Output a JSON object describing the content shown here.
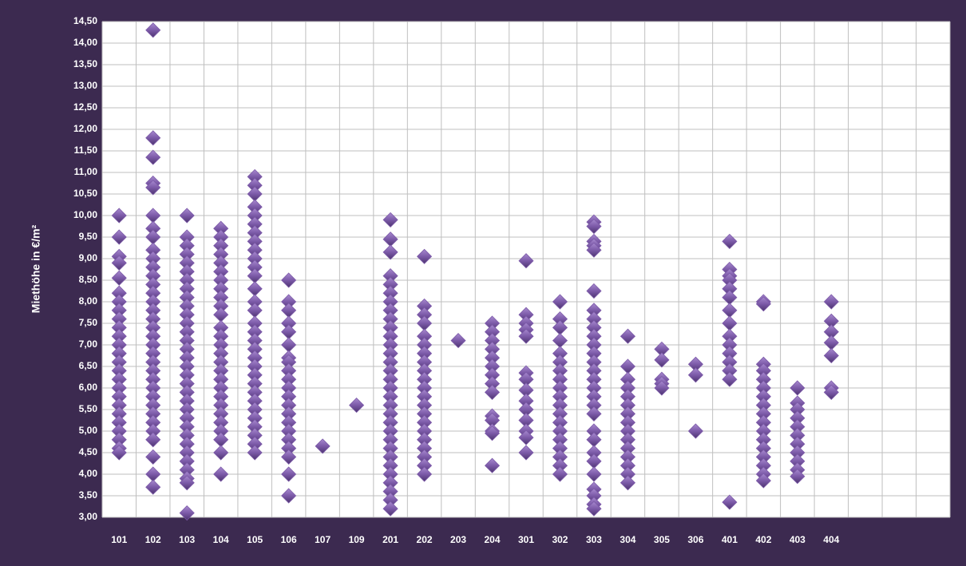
{
  "chart_data": {
    "type": "strip",
    "y_label": "Miethöhe in €/m²",
    "categories": [
      "101",
      "102",
      "103",
      "104",
      "105",
      "106",
      "107",
      "109",
      "201",
      "202",
      "203",
      "204",
      "301",
      "302",
      "303",
      "304",
      "305",
      "306",
      "401",
      "402",
      "403",
      "404",
      null,
      null,
      null
    ],
    "values": [
      [
        10,
        9.5,
        9.05,
        8.9,
        8.55,
        8.2,
        8,
        7.8,
        7.6,
        7.4,
        7.2,
        7,
        6.8,
        6.6,
        6.4,
        6.2,
        6,
        5.8,
        5.6,
        5.4,
        5.2,
        5,
        4.8,
        4.6,
        4.5
      ],
      [
        14.3,
        11.8,
        11.35,
        10.75,
        10.65,
        10,
        9.7,
        9.5,
        9.2,
        9,
        8.8,
        8.6,
        8.4,
        8.2,
        8,
        7.8,
        7.6,
        7.4,
        7.2,
        7,
        6.8,
        6.6,
        6.4,
        6.2,
        6,
        5.8,
        5.6,
        5.4,
        5.2,
        5,
        4.8,
        4.4,
        4,
        3.7
      ],
      [
        10,
        9.5,
        9.3,
        9.1,
        8.9,
        8.7,
        8.5,
        8.3,
        8.1,
        7.9,
        7.7,
        7.5,
        7.3,
        7.1,
        6.9,
        6.7,
        6.5,
        6.3,
        6.1,
        5.9,
        5.7,
        5.5,
        5.3,
        5.1,
        4.9,
        4.7,
        4.5,
        4.3,
        4.1,
        3.9,
        3.8,
        3.1
      ],
      [
        9.7,
        9.5,
        9.3,
        9.1,
        8.9,
        8.7,
        8.5,
        8.3,
        8.1,
        7.9,
        7.7,
        7.4,
        7.2,
        7,
        6.8,
        6.6,
        6.4,
        6.2,
        6,
        5.8,
        5.6,
        5.4,
        5.2,
        5,
        4.8,
        4.5,
        4
      ],
      [
        10.9,
        10.7,
        10.5,
        10.2,
        10,
        9.8,
        9.6,
        9.4,
        9.2,
        9,
        8.8,
        8.6,
        8.3,
        8,
        7.8,
        7.5,
        7.3,
        7.1,
        6.9,
        6.7,
        6.5,
        6.3,
        6.1,
        5.9,
        5.7,
        5.5,
        5.3,
        5.1,
        4.9,
        4.7,
        4.5
      ],
      [
        8.5,
        8,
        7.8,
        7.5,
        7.3,
        7,
        6.7,
        6.6,
        6.4,
        6.2,
        6,
        5.8,
        5.6,
        5.4,
        5.2,
        5,
        4.8,
        4.6,
        4.4,
        4,
        3.5
      ],
      [
        4.65
      ],
      [
        5.6
      ],
      [
        9.9,
        9.45,
        9.15,
        8.6,
        8.4,
        8.2,
        8,
        7.8,
        7.6,
        7.4,
        7.2,
        7,
        6.8,
        6.6,
        6.4,
        6.2,
        6,
        5.8,
        5.6,
        5.4,
        5.2,
        5,
        4.8,
        4.6,
        4.4,
        4.2,
        4,
        3.8,
        3.6,
        3.4,
        3.2
      ],
      [
        9.05,
        7.9,
        7.7,
        7.5,
        7.2,
        7,
        6.8,
        6.6,
        6.4,
        6.2,
        6,
        5.8,
        5.6,
        5.4,
        5.2,
        5,
        4.8,
        4.6,
        4.4,
        4.2,
        4
      ],
      [
        7.1
      ],
      [
        7.5,
        7.3,
        7.1,
        6.9,
        6.7,
        6.5,
        6.3,
        6.1,
        5.9,
        5.35,
        5.25,
        5,
        4.95,
        4.2
      ],
      [
        8.95,
        7.7,
        7.5,
        7.35,
        7.2,
        6.35,
        6.2,
        5.95,
        5.7,
        5.5,
        5.25,
        5,
        4.85,
        4.5
      ],
      [
        8,
        7.6,
        7.4,
        7.1,
        6.8,
        6.6,
        6.4,
        6.2,
        6,
        5.8,
        5.6,
        5.4,
        5.2,
        5,
        4.8,
        4.6,
        4.4,
        4.2,
        4
      ],
      [
        9.85,
        9.75,
        9.4,
        9.3,
        9.2,
        8.25,
        7.8,
        7.6,
        7.4,
        7.2,
        7,
        6.8,
        6.6,
        6.4,
        6.2,
        6,
        5.8,
        5.6,
        5.4,
        5,
        4.8,
        4.5,
        4.3,
        4,
        3.65,
        3.5,
        3.3,
        3.2
      ],
      [
        7.2,
        6.5,
        6.2,
        6,
        5.8,
        5.6,
        5.4,
        5.2,
        5,
        4.8,
        4.6,
        4.4,
        4.2,
        4,
        3.8
      ],
      [
        6.9,
        6.65,
        6.2,
        6.1,
        6
      ],
      [
        6.55,
        6.3,
        5
      ],
      [
        9.4,
        8.75,
        8.6,
        8.5,
        8.3,
        8.1,
        7.8,
        7.5,
        7.2,
        7,
        6.8,
        6.6,
        6.4,
        6.2,
        3.35
      ],
      [
        8,
        7.95,
        6.55,
        6.4,
        6.2,
        6,
        5.8,
        5.6,
        5.4,
        5.2,
        5,
        4.8,
        4.6,
        4.4,
        4.2,
        4,
        3.85
      ],
      [
        6,
        5.65,
        5.5,
        5.3,
        5.1,
        4.9,
        4.7,
        4.5,
        4.3,
        4.1,
        3.95
      ],
      [
        8,
        7.55,
        7.3,
        7.05,
        6.75,
        6,
        5.9
      ],
      [],
      [],
      []
    ],
    "color": "#7c5aa8",
    "ylim": [
      3,
      14.5
    ],
    "yticks": [
      {
        "value": 3,
        "label": "3,00"
      },
      {
        "value": 3.5,
        "label": "3,50"
      },
      {
        "value": 4,
        "label": "4,00"
      },
      {
        "value": 4.5,
        "label": "4,50"
      },
      {
        "value": 5,
        "label": "5,00"
      },
      {
        "value": 5.5,
        "label": "5,50"
      },
      {
        "value": 6,
        "label": "6,00"
      },
      {
        "value": 6.5,
        "label": "6,50"
      },
      {
        "value": 7,
        "label": "7,00"
      },
      {
        "value": 7.5,
        "label": "7,50"
      },
      {
        "value": 8,
        "label": "8,00"
      },
      {
        "value": 8.5,
        "label": "8,50"
      },
      {
        "value": 9,
        "label": "9,00"
      },
      {
        "value": 9.5,
        "label": "9,50"
      },
      {
        "value": 10,
        "label": "10,00"
      },
      {
        "value": 10.5,
        "label": "10,50"
      },
      {
        "value": 11,
        "label": "11,00"
      },
      {
        "value": 11.5,
        "label": "11,50"
      },
      {
        "value": 12,
        "label": "12,00"
      },
      {
        "value": 12.5,
        "label": "12,50"
      },
      {
        "value": 13,
        "label": "13,00"
      },
      {
        "value": 13.5,
        "label": "13,50"
      },
      {
        "value": 14,
        "label": "14,00"
      },
      {
        "value": 14.5,
        "label": "14,50"
      }
    ],
    "grid": true
  }
}
